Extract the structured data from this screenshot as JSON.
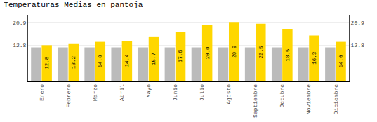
{
  "chart_data": {
    "type": "bar",
    "title": "Temperaturas Medias en pantoja",
    "categories": [
      "Enero",
      "Febrero",
      "Marzo",
      "Abril",
      "Mayo",
      "Junio",
      "Julio",
      "Agosto",
      "Septiembre",
      "Octubre",
      "Noviembre",
      "Diciembre"
    ],
    "series": [
      {
        "color": "#BBBBBB",
        "values": [
          12.0,
          12.0,
          12.0,
          12.0,
          12.0,
          12.0,
          12.0,
          12.0,
          12.0,
          12.0,
          12.0,
          12.0
        ]
      },
      {
        "color": "#FFD700",
        "values": [
          12.8,
          13.2,
          14.0,
          14.4,
          15.7,
          17.6,
          20.0,
          20.9,
          20.5,
          18.5,
          16.3,
          14.0
        ],
        "data_labels": true,
        "value_labels": [
          "12.8",
          "13.2",
          "14.0",
          "14.4",
          "15.7",
          "17.6",
          "20.0",
          "20.9",
          "20.5",
          "18.5",
          "16.3",
          "14.0"
        ]
      }
    ],
    "ylim": [
      0,
      23.5
    ],
    "yticks": [
      12.8,
      20.9
    ],
    "y2lim": [
      0,
      23.5
    ],
    "y2ticks": [
      12.8,
      20.9
    ],
    "grid": true
  }
}
